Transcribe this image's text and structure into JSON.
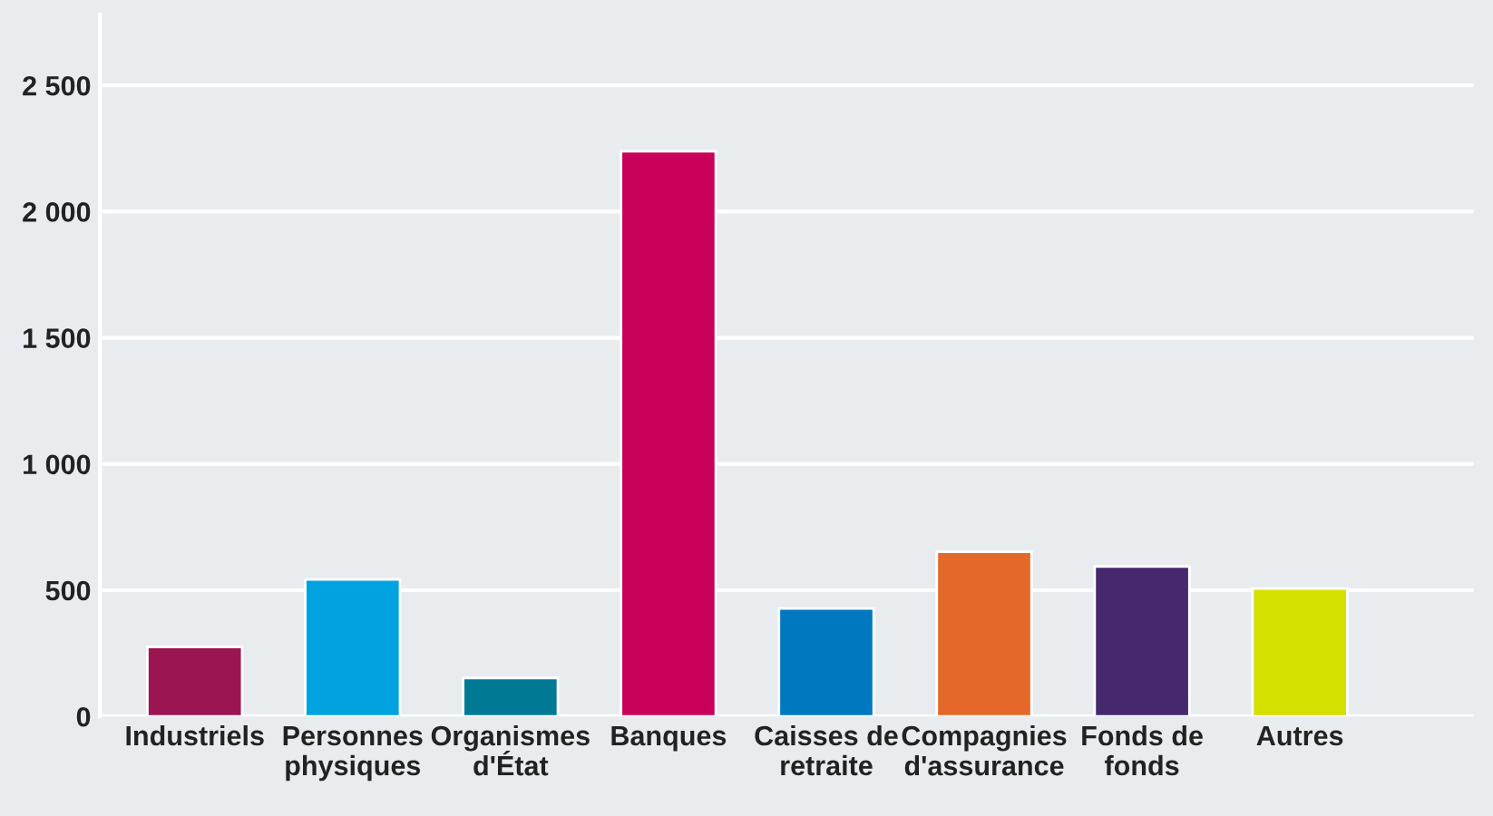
{
  "chart_data": {
    "type": "bar",
    "categories": [
      "Industriels",
      "Personnes\nphysiques",
      "Organismes\nd'État",
      "Banques",
      "Caisses de\nretraite",
      "Compagnies\nd'assurance",
      "Fonds de\nfonds",
      "Autres"
    ],
    "values": [
      275,
      543,
      152,
      2239,
      428,
      652,
      594,
      507
    ],
    "colors": [
      "#9b1553",
      "#00a3e0",
      "#007a94",
      "#c8005a",
      "#0078c0",
      "#e4682a",
      "#45286e",
      "#d4e000"
    ],
    "ylim": [
      0,
      2780
    ],
    "yticks": [
      0,
      500,
      {
        "value": 1000,
        "label": "1 000"
      },
      {
        "value": 1500,
        "label": "1 500"
      },
      {
        "value": 2000,
        "label": "2 000"
      },
      {
        "value": 2500,
        "label": "2 500"
      }
    ],
    "grid": "y",
    "legend": false
  }
}
